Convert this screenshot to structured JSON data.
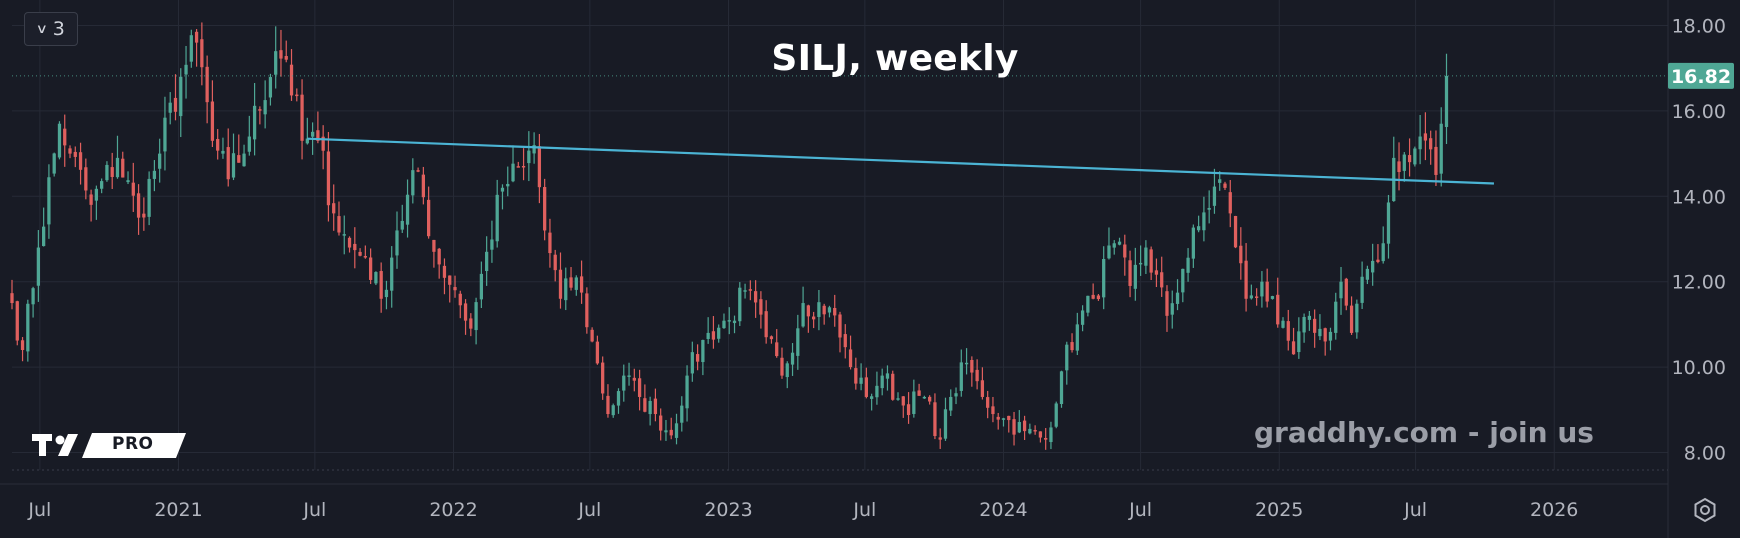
{
  "toolbar": {
    "collapse_count": "3"
  },
  "watermark": "graddhy.com - join us",
  "logo_text": "PRO",
  "colors": {
    "background": "#181b25",
    "up": "#4fa795",
    "down": "#e0605e",
    "trendline": "#4bb4d4",
    "price_label": "#4fa795",
    "grid": "#262a36",
    "text": "#b2b5be"
  },
  "icons": {
    "settings": "gear-icon",
    "collapse": "chevron-down-icon"
  },
  "chart_data": {
    "type": "candlestick",
    "title": "SILJ, weekly",
    "interval": "weekly",
    "y_axis": {
      "side": "right",
      "ylim": [
        7.8,
        18.2
      ],
      "tick_labels": [
        "18.00",
        "16.00",
        "14.00",
        "12.00",
        "10.00",
        "8.00"
      ]
    },
    "x_axis": {
      "range": [
        "2020-05-25",
        "2026-06-01"
      ],
      "ticks": [
        {
          "date": "2020-07-01",
          "label": "Jul"
        },
        {
          "date": "2021-01-01",
          "label": "2021"
        },
        {
          "date": "2021-07-01",
          "label": "Jul"
        },
        {
          "date": "2022-01-01",
          "label": "2022"
        },
        {
          "date": "2022-07-01",
          "label": "Jul"
        },
        {
          "date": "2023-01-01",
          "label": "2023"
        },
        {
          "date": "2023-07-01",
          "label": "Jul"
        },
        {
          "date": "2024-01-01",
          "label": "2024"
        },
        {
          "date": "2024-07-01",
          "label": "Jul"
        },
        {
          "date": "2025-01-01",
          "label": "2025"
        },
        {
          "date": "2025-07-01",
          "label": "Jul"
        },
        {
          "date": "2026-01-01",
          "label": "2026"
        }
      ]
    },
    "last_price": 16.82,
    "last_price_label": "16.82",
    "trendline": {
      "start": {
        "date": "2021-06-21",
        "value": 15.35
      },
      "end": {
        "date": "2025-10-13",
        "value": 14.3
      }
    },
    "close_anchors": [
      [
        "2020-05-25",
        11.5
      ],
      [
        "2020-06-08",
        10.4
      ],
      [
        "2020-06-29",
        12.8
      ],
      [
        "2020-07-27",
        15.7
      ],
      [
        "2020-08-10",
        15.0
      ],
      [
        "2020-09-07",
        13.8
      ],
      [
        "2020-10-12",
        14.9
      ],
      [
        "2020-11-09",
        13.5
      ],
      [
        "2020-12-07",
        15.0
      ],
      [
        "2021-01-04",
        16.8
      ],
      [
        "2021-01-25",
        17.6
      ],
      [
        "2021-02-15",
        15.3
      ],
      [
        "2021-03-08",
        14.4
      ],
      [
        "2021-04-05",
        15.4
      ],
      [
        "2021-05-10",
        17.4
      ],
      [
        "2021-05-24",
        17.2
      ],
      [
        "2021-06-14",
        15.3
      ],
      [
        "2021-07-05",
        15.3
      ],
      [
        "2021-07-26",
        13.6
      ],
      [
        "2021-08-16",
        12.8
      ],
      [
        "2021-09-06",
        12.6
      ],
      [
        "2021-09-27",
        11.6
      ],
      [
        "2021-10-18",
        13.2
      ],
      [
        "2021-11-15",
        14.6
      ],
      [
        "2021-12-06",
        12.7
      ],
      [
        "2022-01-03",
        11.8
      ],
      [
        "2022-01-24",
        10.9
      ],
      [
        "2022-02-14",
        12.7
      ],
      [
        "2022-03-07",
        14.2
      ],
      [
        "2022-04-04",
        14.7
      ],
      [
        "2022-04-18",
        15.2
      ],
      [
        "2022-05-02",
        13.2
      ],
      [
        "2022-05-23",
        11.6
      ],
      [
        "2022-06-13",
        12.1
      ],
      [
        "2022-07-04",
        10.6
      ],
      [
        "2022-07-25",
        8.9
      ],
      [
        "2022-08-15",
        9.8
      ],
      [
        "2022-09-05",
        9.3
      ],
      [
        "2022-09-26",
        8.9
      ],
      [
        "2022-10-17",
        8.4
      ],
      [
        "2022-11-07",
        9.8
      ],
      [
        "2022-12-05",
        10.8
      ],
      [
        "2023-01-02",
        11.1
      ],
      [
        "2023-01-23",
        11.8
      ],
      [
        "2023-02-20",
        10.7
      ],
      [
        "2023-03-13",
        9.8
      ],
      [
        "2023-04-10",
        11.5
      ],
      [
        "2023-05-15",
        11.4
      ],
      [
        "2023-06-12",
        10.0
      ],
      [
        "2023-07-03",
        9.3
      ],
      [
        "2023-07-24",
        9.8
      ],
      [
        "2023-08-21",
        9.1
      ],
      [
        "2023-09-18",
        9.3
      ],
      [
        "2023-10-09",
        8.3
      ],
      [
        "2023-10-23",
        9.3
      ],
      [
        "2023-11-13",
        10.1
      ],
      [
        "2023-12-04",
        9.3
      ],
      [
        "2024-01-01",
        8.8
      ],
      [
        "2024-01-29",
        8.5
      ],
      [
        "2024-02-26",
        8.3
      ],
      [
        "2024-03-18",
        9.9
      ],
      [
        "2024-04-08",
        11.0
      ],
      [
        "2024-04-29",
        11.6
      ],
      [
        "2024-05-27",
        12.9
      ],
      [
        "2024-06-17",
        11.9
      ],
      [
        "2024-07-08",
        12.8
      ],
      [
        "2024-08-05",
        11.2
      ],
      [
        "2024-08-26",
        12.3
      ],
      [
        "2024-09-16",
        13.3
      ],
      [
        "2024-10-14",
        14.4
      ],
      [
        "2024-10-28",
        13.6
      ],
      [
        "2024-11-18",
        11.6
      ],
      [
        "2024-12-09",
        12.0
      ],
      [
        "2024-12-30",
        11.0
      ],
      [
        "2025-01-20",
        10.3
      ],
      [
        "2025-02-10",
        11.2
      ],
      [
        "2025-03-03",
        10.6
      ],
      [
        "2025-03-24",
        12.0
      ],
      [
        "2025-04-07",
        10.8
      ],
      [
        "2025-04-28",
        12.3
      ],
      [
        "2025-05-19",
        12.9
      ],
      [
        "2025-06-02",
        14.9
      ],
      [
        "2025-06-23",
        14.8
      ],
      [
        "2025-07-07",
        15.4
      ],
      [
        "2025-07-21",
        15.1
      ],
      [
        "2025-07-28",
        14.5
      ],
      [
        "2025-08-04",
        15.7
      ],
      [
        "2025-08-11",
        16.82
      ]
    ]
  }
}
